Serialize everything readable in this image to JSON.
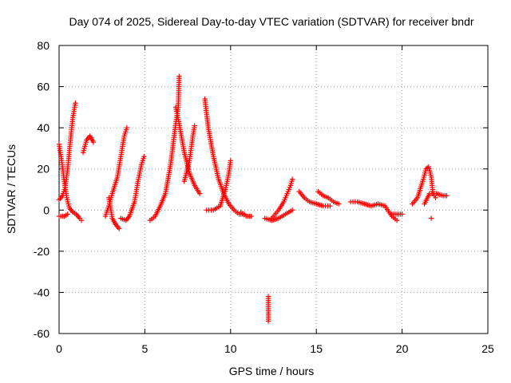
{
  "chart_data": {
    "type": "scatter",
    "title": "Day 074 of 2025, Sidereal Day-to-day VTEC variation (SDTVAR) for receiver bndr",
    "xlabel": "GPS time / hours",
    "ylabel": "SDTVAR / TECUs",
    "xlim": [
      0,
      25
    ],
    "ylim": [
      -60,
      80
    ],
    "xticks": [
      0,
      5,
      10,
      15,
      20,
      25
    ],
    "yticks": [
      -60,
      -40,
      -20,
      0,
      20,
      40,
      60,
      80
    ],
    "grid": true,
    "marker": "plus",
    "color": "#ff0000",
    "arcs": [
      {
        "points": [
          [
            0.0,
            32
          ],
          [
            0.15,
            24
          ],
          [
            0.3,
            14
          ],
          [
            0.45,
            6
          ],
          [
            0.6,
            1
          ],
          [
            0.8,
            -1
          ],
          [
            1.0,
            -2
          ],
          [
            1.2,
            -4
          ],
          [
            1.3,
            -5
          ]
        ]
      },
      {
        "points": [
          [
            0.0,
            -3
          ],
          [
            0.3,
            -3
          ],
          [
            0.5,
            -2
          ]
        ]
      },
      {
        "points": [
          [
            0.0,
            5
          ],
          [
            0.2,
            7
          ],
          [
            0.35,
            11
          ],
          [
            0.5,
            20
          ],
          [
            0.65,
            33
          ],
          [
            0.8,
            45
          ],
          [
            0.95,
            52
          ]
        ]
      },
      {
        "points": [
          [
            1.4,
            28
          ],
          [
            1.6,
            34
          ],
          [
            1.8,
            36
          ],
          [
            2.0,
            33
          ]
        ]
      },
      {
        "points": [
          [
            2.7,
            -3
          ],
          [
            2.9,
            2
          ],
          [
            3.1,
            8
          ],
          [
            3.4,
            16
          ],
          [
            3.6,
            26
          ],
          [
            3.8,
            36
          ],
          [
            3.95,
            40
          ]
        ]
      },
      {
        "points": [
          [
            2.9,
            6
          ],
          [
            3.1,
            -4
          ],
          [
            3.3,
            -7
          ],
          [
            3.5,
            -9
          ]
        ]
      },
      {
        "points": [
          [
            3.6,
            -4
          ],
          [
            3.9,
            -5
          ],
          [
            4.1,
            -3
          ],
          [
            4.4,
            4
          ],
          [
            4.6,
            14
          ],
          [
            4.8,
            22
          ],
          [
            4.95,
            26
          ]
        ]
      },
      {
        "points": [
          [
            5.3,
            -5
          ],
          [
            5.6,
            -3
          ],
          [
            5.9,
            2
          ],
          [
            6.2,
            8
          ],
          [
            6.5,
            22
          ],
          [
            6.8,
            42
          ],
          [
            6.95,
            50
          ],
          [
            7.0,
            65
          ]
        ]
      },
      {
        "points": [
          [
            6.8,
            50
          ],
          [
            7.0,
            42
          ],
          [
            7.3,
            28
          ],
          [
            7.6,
            18
          ],
          [
            7.9,
            12
          ],
          [
            8.2,
            8
          ]
        ]
      },
      {
        "points": [
          [
            7.3,
            14
          ],
          [
            7.6,
            24
          ],
          [
            7.8,
            36
          ],
          [
            7.9,
            41
          ]
        ]
      },
      {
        "points": [
          [
            8.5,
            54
          ],
          [
            8.7,
            40
          ],
          [
            9.0,
            26
          ],
          [
            9.3,
            15
          ],
          [
            9.6,
            8
          ],
          [
            9.9,
            3
          ],
          [
            10.2,
            0
          ],
          [
            10.5,
            -2
          ],
          [
            10.8,
            -2
          ]
        ]
      },
      {
        "points": [
          [
            8.6,
            0
          ],
          [
            9.0,
            0
          ],
          [
            9.4,
            2
          ],
          [
            9.7,
            10
          ],
          [
            9.9,
            18
          ],
          [
            10.0,
            24
          ]
        ]
      },
      {
        "points": [
          [
            10.6,
            -1
          ],
          [
            10.9,
            -3
          ],
          [
            11.2,
            -3
          ]
        ]
      },
      {
        "points": [
          [
            12.0,
            -4
          ],
          [
            12.4,
            -5
          ],
          [
            12.8,
            -4
          ],
          [
            13.2,
            -2
          ],
          [
            13.6,
            0
          ]
        ]
      },
      {
        "points": [
          [
            12.4,
            -4
          ],
          [
            12.8,
            0
          ],
          [
            13.1,
            4
          ],
          [
            13.3,
            8
          ],
          [
            13.5,
            12
          ],
          [
            13.6,
            15
          ]
        ]
      },
      {
        "points": [
          [
            12.2,
            -42
          ],
          [
            12.2,
            -45
          ],
          [
            12.2,
            -48
          ],
          [
            12.2,
            -51
          ],
          [
            12.2,
            -54
          ]
        ]
      },
      {
        "points": [
          [
            14.0,
            9
          ],
          [
            14.3,
            6
          ],
          [
            14.6,
            4
          ],
          [
            15.0,
            3
          ],
          [
            15.4,
            2
          ],
          [
            15.8,
            2
          ]
        ]
      },
      {
        "points": [
          [
            15.1,
            9
          ],
          [
            15.4,
            7
          ],
          [
            15.7,
            6
          ],
          [
            16.0,
            4
          ],
          [
            16.3,
            3
          ]
        ]
      },
      {
        "points": [
          [
            17.0,
            4
          ],
          [
            17.4,
            4
          ],
          [
            17.8,
            3
          ],
          [
            18.2,
            2
          ],
          [
            18.6,
            3
          ],
          [
            19.0,
            2
          ],
          [
            19.4,
            -3
          ],
          [
            19.7,
            -5
          ]
        ]
      },
      {
        "points": [
          [
            19.4,
            -2
          ],
          [
            19.7,
            -2
          ],
          [
            20.0,
            -2
          ]
        ]
      },
      {
        "points": [
          [
            20.6,
            3
          ],
          [
            20.9,
            6
          ],
          [
            21.2,
            14
          ],
          [
            21.4,
            20
          ],
          [
            21.55,
            21
          ],
          [
            21.7,
            16
          ],
          [
            21.8,
            8
          ],
          [
            21.95,
            6
          ]
        ]
      },
      {
        "points": [
          [
            21.3,
            3
          ],
          [
            21.6,
            8
          ],
          [
            22.0,
            8
          ],
          [
            22.4,
            7
          ],
          [
            22.6,
            7
          ]
        ]
      },
      {
        "points": [
          [
            21.7,
            -4
          ]
        ]
      }
    ]
  }
}
